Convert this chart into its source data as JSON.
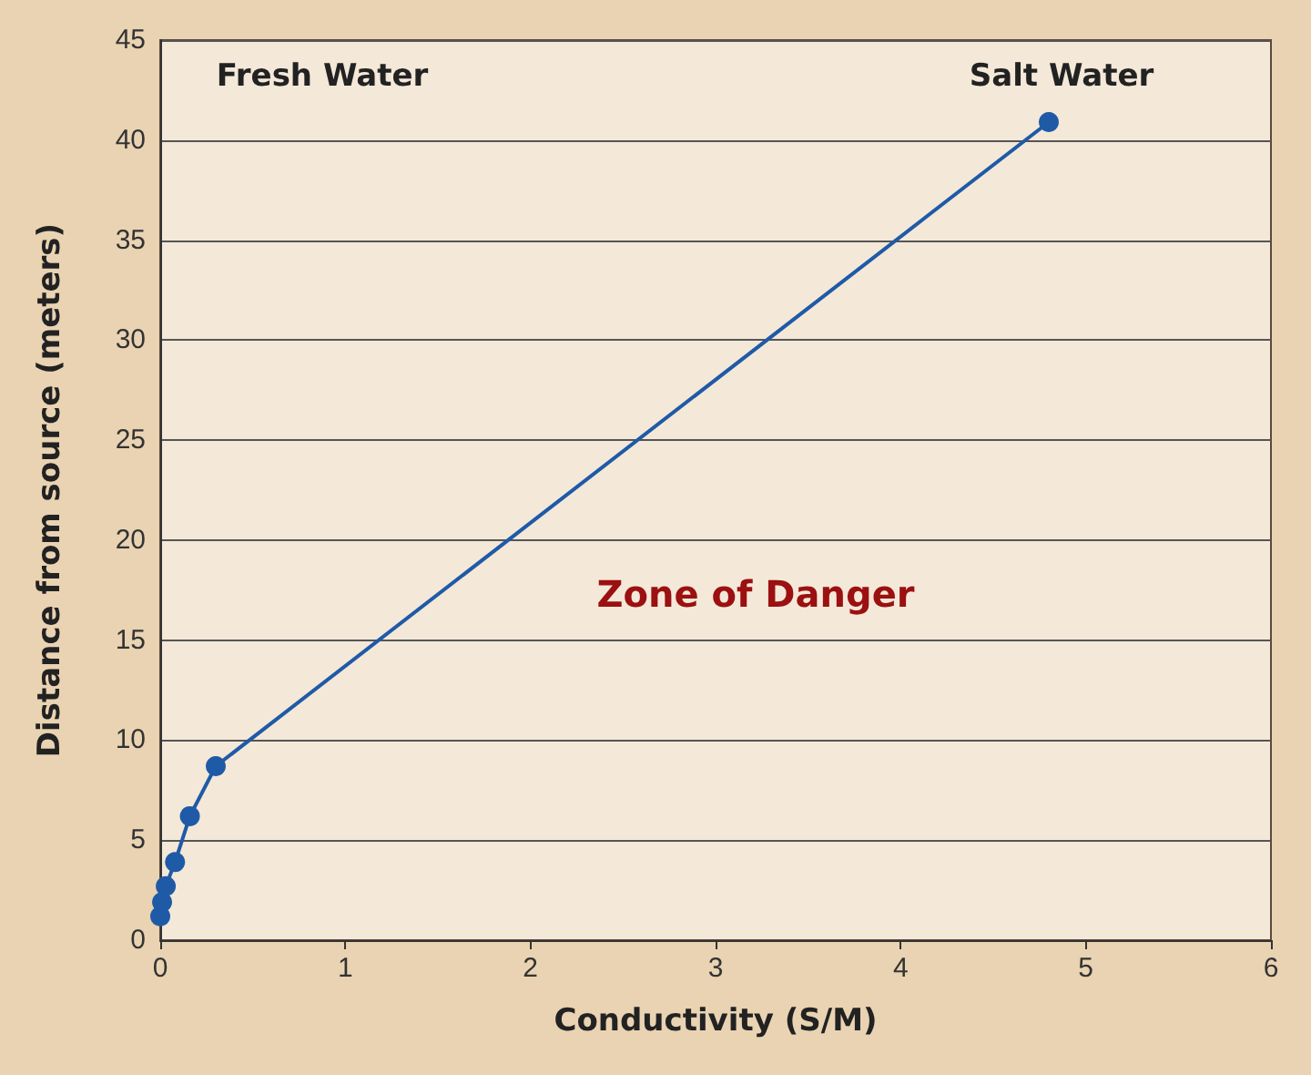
{
  "chart_data": {
    "type": "line",
    "xlabel": "Conductivity (S/M)",
    "ylabel": "Distance from source (meters)",
    "x": [
      0,
      0.01,
      0.03,
      0.08,
      0.16,
      0.3,
      4.8
    ],
    "series": [
      {
        "color": "#1f5aa6",
        "values": [
          1.2,
          1.9,
          2.7,
          3.9,
          6.2,
          8.7,
          40.9
        ]
      }
    ],
    "xlim": [
      0,
      6
    ],
    "xticks": [
      0,
      1,
      2,
      3,
      4,
      5,
      6
    ],
    "ylim": [
      0,
      45
    ],
    "yticks": [
      0,
      5,
      10,
      15,
      20,
      25,
      30,
      35,
      40,
      45
    ],
    "grid": "y",
    "marker": "circle",
    "line_style": "solid",
    "annotations": [
      "Fresh Water",
      "Salt Water",
      "Zone of Danger"
    ]
  }
}
